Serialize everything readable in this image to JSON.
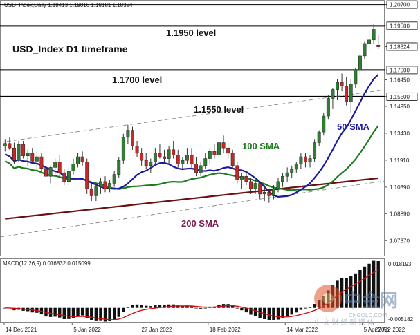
{
  "header": {
    "text": "USD_Index,Daily  1.18413 1.19016 1.18181 1.18324"
  },
  "chart_title": "USD_Index D1 timeframe",
  "levels": [
    {
      "value": 1.195,
      "label": "1.1950 level"
    },
    {
      "value": 1.17,
      "label": "1.1700 level"
    },
    {
      "value": 1.155,
      "label": "1.1550 level"
    }
  ],
  "sma_labels": {
    "sma50": "50 SMA",
    "sma100": "100 SMA",
    "sma200": "200 SMA"
  },
  "colors": {
    "up": "#2e7d32",
    "down": "#c62828",
    "sma50": "#1a1aa0",
    "sma100": "#1e7a1e",
    "sma200": "#6b1010",
    "macd_signal": "#d01010",
    "hist": "#111111",
    "level_line": "#000000"
  },
  "price_axis": {
    "ticks": [
      "1.20700",
      "1.19500",
      "1.18324",
      "1.17000",
      "1.16450",
      "1.15500",
      "1.14950",
      "1.13430",
      "1.11910",
      "1.10390",
      "1.08890",
      "1.07370"
    ],
    "current_price": "1.18324"
  },
  "macd_axis": {
    "label": "MACD(12,26,9) 0.016832 0.015099",
    "ticks": [
      "0.018193",
      "-0.005182"
    ]
  },
  "x_axis": {
    "ticks": [
      "14 Dec 2021",
      "5 Jan 2022",
      "27 Jan 2022",
      "18 Feb 2022",
      "14 Mar 2022",
      "5 Apr 2022",
      "27 Apr 2022"
    ]
  },
  "watermark": {
    "brand": "中金网",
    "site": "CNGOLD.COM",
    "tagline": "中 文 财 经 新 媒 体"
  },
  "chart_data": {
    "type": "candlestick",
    "title": "USD_Index D1 timeframe",
    "symbol": "USD_Index",
    "timeframe": "Daily",
    "ohlc_header": {
      "open": 1.18413,
      "high": 1.19016,
      "low": 1.18181,
      "close": 1.18324
    },
    "ylim": [
      1.066,
      1.208
    ],
    "horizontal_levels": [
      1.195,
      1.17,
      1.155
    ],
    "date_range": [
      "2021-12-14",
      "2022-05-04"
    ],
    "candles": [
      [
        1.127,
        1.131,
        1.124,
        1.1285
      ],
      [
        1.1285,
        1.132,
        1.125,
        1.126
      ],
      [
        1.126,
        1.129,
        1.117,
        1.119
      ],
      [
        1.119,
        1.13,
        1.118,
        1.128
      ],
      [
        1.128,
        1.13,
        1.12,
        1.1215
      ],
      [
        1.1215,
        1.125,
        1.116,
        1.123
      ],
      [
        1.123,
        1.126,
        1.117,
        1.1185
      ],
      [
        1.1185,
        1.124,
        1.114,
        1.121
      ],
      [
        1.121,
        1.123,
        1.113,
        1.1145
      ],
      [
        1.1145,
        1.117,
        1.108,
        1.11
      ],
      [
        1.11,
        1.116,
        1.106,
        1.115
      ],
      [
        1.115,
        1.12,
        1.111,
        1.118
      ],
      [
        1.118,
        1.122,
        1.11,
        1.112
      ],
      [
        1.112,
        1.114,
        1.105,
        1.107
      ],
      [
        1.107,
        1.115,
        1.105,
        1.113
      ],
      [
        1.113,
        1.12,
        1.111,
        1.117
      ],
      [
        1.117,
        1.123,
        1.115,
        1.121
      ],
      [
        1.121,
        1.124,
        1.116,
        1.118
      ],
      [
        1.118,
        1.12,
        1.1,
        1.103
      ],
      [
        1.103,
        1.106,
        1.096,
        1.099
      ],
      [
        1.099,
        1.106,
        1.096,
        1.104
      ],
      [
        1.104,
        1.109,
        1.1,
        1.107
      ],
      [
        1.107,
        1.11,
        1.101,
        1.103
      ],
      [
        1.103,
        1.108,
        1.101,
        1.106
      ],
      [
        1.106,
        1.113,
        1.104,
        1.111
      ],
      [
        1.111,
        1.121,
        1.109,
        1.119
      ],
      [
        1.119,
        1.134,
        1.117,
        1.132
      ],
      [
        1.132,
        1.139,
        1.128,
        1.136
      ],
      [
        1.136,
        1.138,
        1.125,
        1.127
      ],
      [
        1.127,
        1.13,
        1.121,
        1.123
      ],
      [
        1.123,
        1.126,
        1.116,
        1.119
      ],
      [
        1.119,
        1.123,
        1.114,
        1.116
      ],
      [
        1.116,
        1.12,
        1.112,
        1.118
      ],
      [
        1.118,
        1.126,
        1.116,
        1.123
      ],
      [
        1.123,
        1.128,
        1.12,
        1.121
      ],
      [
        1.121,
        1.125,
        1.118,
        1.12
      ],
      [
        1.12,
        1.127,
        1.117,
        1.125
      ],
      [
        1.125,
        1.13,
        1.12,
        1.122
      ],
      [
        1.122,
        1.125,
        1.115,
        1.117
      ],
      [
        1.117,
        1.121,
        1.114,
        1.119
      ],
      [
        1.119,
        1.126,
        1.117,
        1.122
      ],
      [
        1.122,
        1.126,
        1.115,
        1.117
      ],
      [
        1.117,
        1.121,
        1.11,
        1.112
      ],
      [
        1.112,
        1.118,
        1.11,
        1.116
      ],
      [
        1.116,
        1.123,
        1.114,
        1.12
      ],
      [
        1.12,
        1.126,
        1.117,
        1.124
      ],
      [
        1.124,
        1.128,
        1.12,
        1.122
      ],
      [
        1.122,
        1.131,
        1.12,
        1.129
      ],
      [
        1.129,
        1.133,
        1.123,
        1.126
      ],
      [
        1.126,
        1.129,
        1.12,
        1.123
      ],
      [
        1.123,
        1.125,
        1.114,
        1.116
      ],
      [
        1.116,
        1.118,
        1.106,
        1.108
      ],
      [
        1.108,
        1.112,
        1.103,
        1.11
      ],
      [
        1.11,
        1.113,
        1.105,
        1.107
      ],
      [
        1.107,
        1.109,
        1.1,
        1.103
      ],
      [
        1.103,
        1.108,
        1.1,
        1.106
      ],
      [
        1.106,
        1.107,
        1.097,
        1.1
      ],
      [
        1.1,
        1.105,
        1.096,
        1.101
      ],
      [
        1.101,
        1.103,
        1.095,
        1.099
      ],
      [
        1.099,
        1.105,
        1.097,
        1.103
      ],
      [
        1.103,
        1.109,
        1.101,
        1.107
      ],
      [
        1.107,
        1.112,
        1.104,
        1.11
      ],
      [
        1.11,
        1.115,
        1.107,
        1.112
      ],
      [
        1.112,
        1.116,
        1.109,
        1.114
      ],
      [
        1.114,
        1.118,
        1.112,
        1.117
      ],
      [
        1.117,
        1.123,
        1.114,
        1.121
      ],
      [
        1.121,
        1.123,
        1.115,
        1.118
      ],
      [
        1.118,
        1.122,
        1.115,
        1.12
      ],
      [
        1.12,
        1.131,
        1.118,
        1.129
      ],
      [
        1.129,
        1.136,
        1.127,
        1.135
      ],
      [
        1.135,
        1.146,
        1.133,
        1.144
      ],
      [
        1.144,
        1.156,
        1.142,
        1.154
      ],
      [
        1.154,
        1.16,
        1.148,
        1.159
      ],
      [
        1.159,
        1.165,
        1.153,
        1.163
      ],
      [
        1.163,
        1.168,
        1.158,
        1.161
      ],
      [
        1.161,
        1.166,
        1.15,
        1.152
      ],
      [
        1.152,
        1.165,
        1.146,
        1.162
      ],
      [
        1.162,
        1.171,
        1.16,
        1.17
      ],
      [
        1.17,
        1.179,
        1.168,
        1.178
      ],
      [
        1.178,
        1.186,
        1.176,
        1.185
      ],
      [
        1.185,
        1.192,
        1.181,
        1.187
      ],
      [
        1.187,
        1.196,
        1.185,
        1.193
      ],
      [
        1.1841,
        1.1902,
        1.1818,
        1.1832
      ]
    ]
  }
}
